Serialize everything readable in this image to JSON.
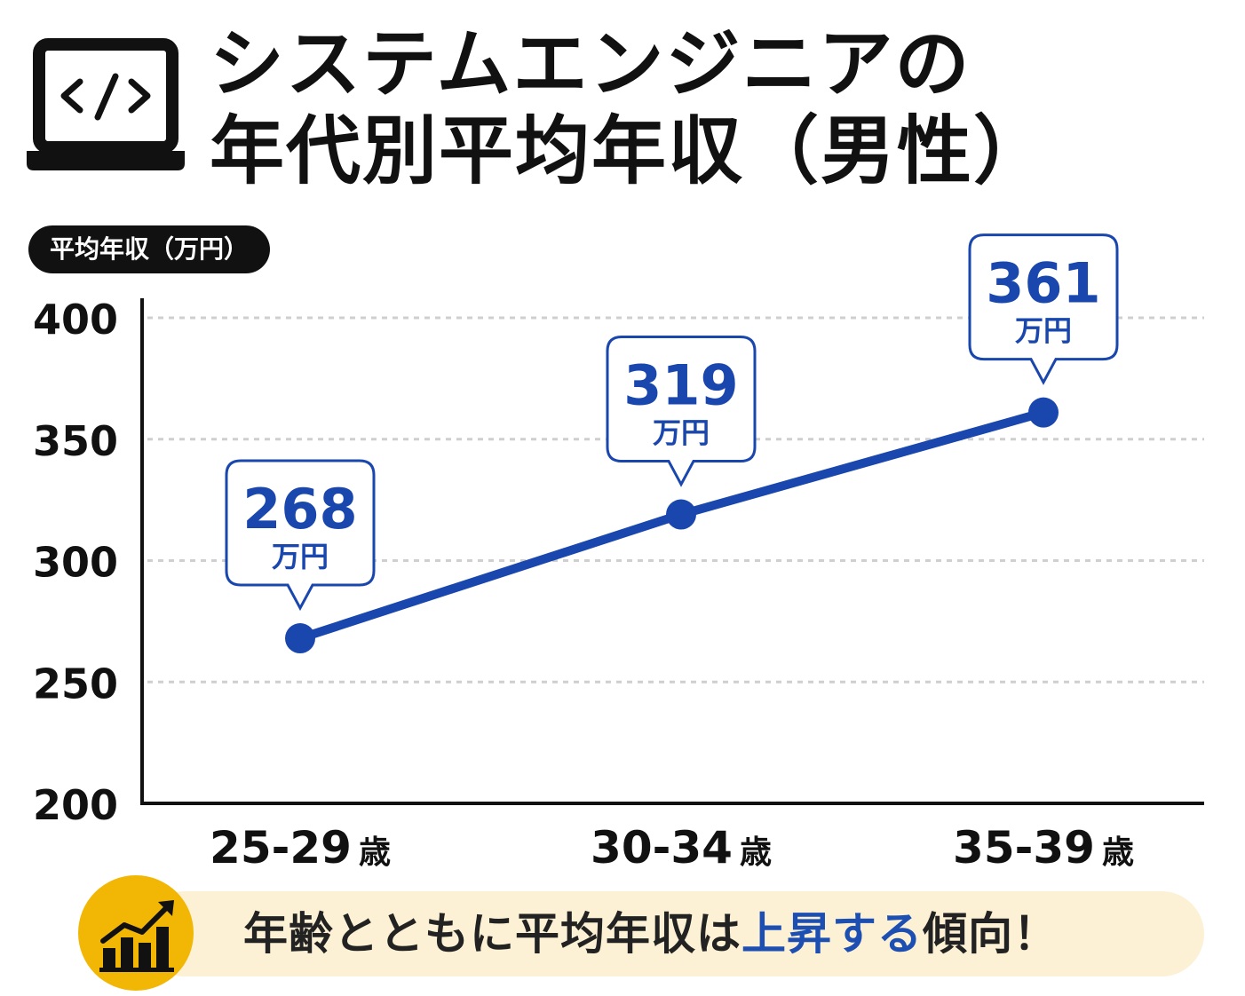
{
  "title": {
    "line1": "システムエンジニアの",
    "line2": "年代別平均年収（男性）"
  },
  "icons": {
    "title_icon": "laptop-code-icon",
    "banner_icon": "bar-chart-trending-up-icon"
  },
  "colors": {
    "line": "#1a47ad",
    "callout_text": "#1a47ad",
    "callout_border": "#1a47ad",
    "banner_bg": "#fcf1d4",
    "banner_icon_bg": "#f2b705",
    "accent_text": "#1d4fb3"
  },
  "banner": {
    "text_before": "年齢とともに平均年収は",
    "text_accent": "上昇する",
    "text_after": "傾向！"
  },
  "chart_data": {
    "type": "line",
    "ylabel": "平均年収（万円）",
    "xlabel": "",
    "categories": [
      "25-29",
      "30-34",
      "35-39"
    ],
    "category_suffix": "歳",
    "ylim": [
      200,
      400
    ],
    "yticks": [
      200,
      250,
      300,
      350,
      400
    ],
    "grid": true,
    "series": [
      {
        "values": [
          268,
          319,
          361
        ],
        "value_labels": [
          "268",
          "319",
          "361"
        ],
        "unit": "万円"
      }
    ]
  }
}
